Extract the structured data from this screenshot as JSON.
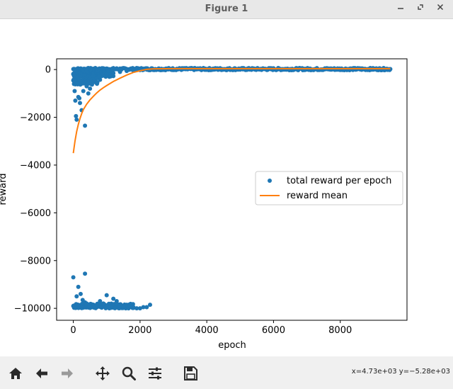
{
  "window": {
    "title": "Figure 1"
  },
  "toolbar": {
    "coords": "x=4.73e+03 y=−5.28e+03"
  },
  "chart_data": {
    "type": "scatter",
    "xlabel": "epoch",
    "ylabel": "reward",
    "xlim": [
      -500,
      10000
    ],
    "ylim": [
      -10500,
      450
    ],
    "xticks": [
      0,
      2000,
      4000,
      6000,
      8000
    ],
    "xtick_labels": [
      "0",
      "2000",
      "4000",
      "6000",
      "8000"
    ],
    "yticks": [
      0,
      -2000,
      -4000,
      -6000,
      -8000,
      -10000
    ],
    "ytick_labels": [
      "0",
      "−2000",
      "−4000",
      "−6000",
      "−8000",
      "−10000"
    ],
    "legend_position": "center-right",
    "series": [
      {
        "name": "total reward per epoch",
        "kind": "scatter",
        "color": "#1f77b4",
        "points": [
          [
            0,
            -200
          ],
          [
            20,
            -450
          ],
          [
            40,
            -900
          ],
          [
            60,
            -1300
          ],
          [
            80,
            -1950
          ],
          [
            100,
            -2100
          ],
          [
            120,
            -600
          ],
          [
            150,
            -1150
          ],
          [
            180,
            -1200
          ],
          [
            200,
            -1400
          ],
          [
            250,
            -1700
          ],
          [
            300,
            -900
          ],
          [
            350,
            -2350
          ],
          [
            400,
            -700
          ],
          [
            450,
            -1000
          ],
          [
            500,
            -800
          ],
          [
            550,
            -600
          ],
          [
            600,
            -500
          ],
          [
            650,
            -400
          ],
          [
            700,
            -350
          ],
          [
            800,
            -300
          ],
          [
            900,
            -250
          ],
          [
            1000,
            -200
          ],
          [
            1200,
            -150
          ],
          [
            1400,
            -100
          ],
          [
            1600,
            -60
          ],
          [
            1800,
            -40
          ],
          [
            2000,
            -20
          ],
          [
            0,
            -8700
          ],
          [
            350,
            -8550
          ],
          [
            150,
            -9100
          ],
          [
            100,
            -9500
          ],
          [
            220,
            -9400
          ],
          [
            280,
            -9650
          ],
          [
            350,
            -9750
          ],
          [
            400,
            -9800
          ],
          [
            500,
            -9900
          ],
          [
            600,
            -9950
          ],
          [
            700,
            -9850
          ],
          [
            800,
            -9700
          ],
          [
            900,
            -9800
          ],
          [
            1000,
            -9450
          ],
          [
            1100,
            -9950
          ],
          [
            1200,
            -9600
          ],
          [
            1300,
            -9700
          ],
          [
            1400,
            -9900
          ],
          [
            1500,
            -9950
          ],
          [
            1600,
            -9850
          ],
          [
            1700,
            -9900
          ],
          [
            1800,
            -9950
          ],
          [
            1900,
            -10000
          ],
          [
            2000,
            -10000
          ],
          [
            2100,
            -9950
          ],
          [
            2200,
            -9950
          ],
          [
            2300,
            -9850
          ]
        ]
      },
      {
        "name": "reward mean",
        "kind": "line",
        "color": "#ff7f0e",
        "x": [
          0,
          50,
          100,
          150,
          200,
          250,
          300,
          400,
          500,
          600,
          700,
          800,
          900,
          1000,
          1200,
          1400,
          1600,
          1800,
          2000,
          2200,
          2400,
          3000,
          4000,
          5000,
          6000,
          7000,
          8000,
          9000,
          9500
        ],
        "y": [
          -3500,
          -3000,
          -2600,
          -2300,
          -2050,
          -1850,
          -1680,
          -1450,
          -1270,
          -1120,
          -980,
          -860,
          -760,
          -670,
          -500,
          -360,
          -230,
          -120,
          -50,
          10,
          30,
          40,
          40,
          40,
          40,
          40,
          40,
          40,
          40
        ]
      }
    ]
  }
}
